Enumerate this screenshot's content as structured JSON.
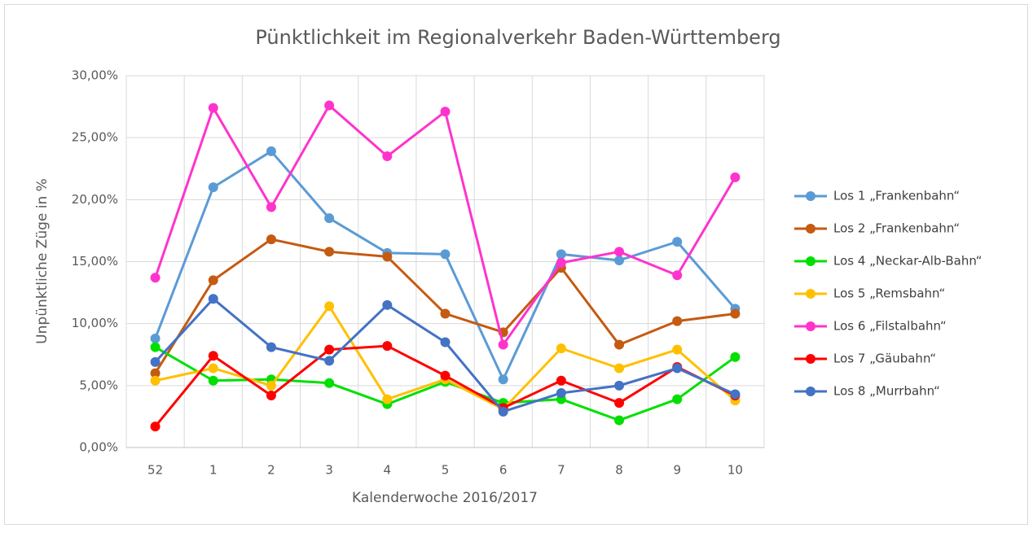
{
  "chart_data": {
    "type": "line",
    "title": "Pünktlichkeit im Regionalverkehr Baden-Württemberg",
    "x_label": "Kalenderwoche 2016/2017",
    "y_label": "Unpünktliche Züge in %",
    "categories": [
      "52",
      "1",
      "2",
      "3",
      "4",
      "5",
      "6",
      "7",
      "8",
      "9",
      "10"
    ],
    "ylim": [
      0,
      30
    ],
    "yticks": [
      {
        "value": 0,
        "label": "0,00%"
      },
      {
        "value": 5,
        "label": "5,00%"
      },
      {
        "value": 10,
        "label": "10,00%"
      },
      {
        "value": 15,
        "label": "15,00%"
      },
      {
        "value": 20,
        "label": "20,00%"
      },
      {
        "value": 25,
        "label": "25,00%"
      },
      {
        "value": 30,
        "label": "30,00%"
      }
    ],
    "grid": true,
    "legend": "right",
    "series": [
      {
        "name": "Los 1 „Frankenbahn“",
        "color": "#5b9bd5",
        "values": [
          8.8,
          21.0,
          23.9,
          18.5,
          15.7,
          15.6,
          5.5,
          15.6,
          15.1,
          16.6,
          11.2
        ]
      },
      {
        "name": "Los 2 „Frankenbahn“",
        "color": "#c55a11",
        "values": [
          6.0,
          13.5,
          16.8,
          15.8,
          15.4,
          10.8,
          9.3,
          14.5,
          8.3,
          10.2,
          10.8
        ]
      },
      {
        "name": "Los 4 „Neckar-Alb-Bahn“",
        "color": "#00e000",
        "values": [
          8.1,
          5.4,
          5.5,
          5.2,
          3.5,
          5.3,
          3.6,
          3.9,
          2.2,
          3.9,
          7.3
        ]
      },
      {
        "name": "Los 5 „Remsbahn“",
        "color": "#ffc000",
        "values": [
          5.4,
          6.4,
          5.0,
          11.4,
          3.9,
          5.5,
          3.1,
          8.0,
          6.4,
          7.9,
          3.8
        ]
      },
      {
        "name": "Los 6 „Filstalbahn“",
        "color": "#ff33cc",
        "values": [
          13.7,
          27.4,
          19.4,
          27.6,
          23.5,
          27.1,
          8.3,
          14.9,
          15.8,
          13.9,
          21.8
        ]
      },
      {
        "name": "Los 7 „Gäubahn“",
        "color": "#ff0000",
        "values": [
          1.7,
          7.4,
          4.2,
          7.9,
          8.2,
          5.8,
          3.2,
          5.4,
          3.6,
          6.5,
          4.2
        ]
      },
      {
        "name": "Los 8 „Murrbahn“",
        "color": "#4472c4",
        "values": [
          6.9,
          12.0,
          8.1,
          7.0,
          11.5,
          8.5,
          2.9,
          4.4,
          5.0,
          6.4,
          4.3
        ]
      }
    ]
  }
}
